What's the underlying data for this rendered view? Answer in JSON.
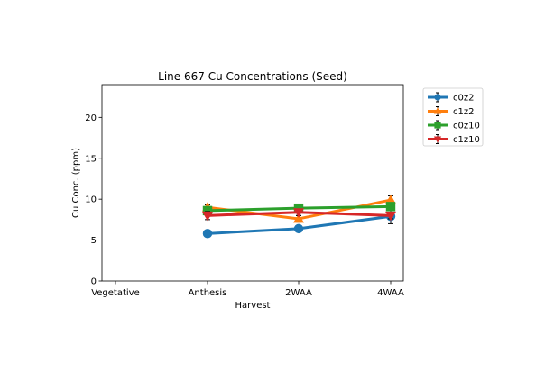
{
  "chart_data": {
    "type": "line",
    "title": "Line 667 Cu Concentrations (Seed)",
    "xlabel": "Harvest",
    "ylabel": "Cu Conc. (ppm)",
    "categories": [
      "Vegetative",
      "Anthesis",
      "2WAA",
      "4WAA"
    ],
    "ylim": [
      0,
      24
    ],
    "yticks": [
      0,
      5,
      10,
      15,
      20
    ],
    "grid": false,
    "legend_position": "outside-top-right",
    "series": [
      {
        "name": "c0z2",
        "color": "#1f77b4",
        "marker": "circle",
        "values": [
          null,
          5.8,
          6.4,
          7.9
        ],
        "errors": [
          null,
          0.4,
          0.3,
          0.9
        ]
      },
      {
        "name": "c1z2",
        "color": "#ff7f0e",
        "marker": "triangle-up",
        "values": [
          null,
          9.0,
          7.6,
          9.9
        ],
        "errors": [
          null,
          0.3,
          0.4,
          0.5
        ]
      },
      {
        "name": "c0z10",
        "color": "#2ca02c",
        "marker": "square",
        "values": [
          null,
          8.6,
          8.9,
          9.1
        ],
        "errors": [
          null,
          0.3,
          0.3,
          0.3
        ]
      },
      {
        "name": "c1z10",
        "color": "#d62728",
        "marker": "triangle-down",
        "values": [
          null,
          8.0,
          8.4,
          8.0
        ],
        "errors": [
          null,
          0.5,
          0.4,
          0.4
        ]
      }
    ]
  }
}
